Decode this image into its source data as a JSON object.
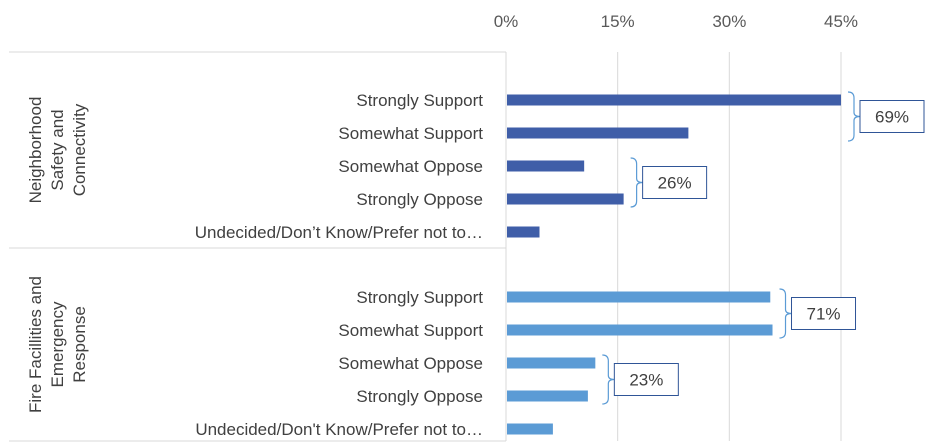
{
  "chart_data": {
    "type": "bar",
    "orientation": "horizontal",
    "title": "",
    "xlabel": "",
    "ylabel": "",
    "xlim": [
      0,
      45
    ],
    "ticks": [
      "0%",
      "15%",
      "30%",
      "45%"
    ],
    "tick_values": [
      0,
      15,
      30,
      45
    ],
    "grid": true,
    "groups": [
      {
        "name": "Neighborhood Safety and Connectivity",
        "name_lines": [
          "Neighborhood",
          "Safety and",
          "Connectivity"
        ],
        "color": "#3F5EA8",
        "categories": [
          "Strongly Support",
          "Somewhat Support",
          "Somewhat Oppose",
          "Strongly Oppose",
          "Undecided/Don’t Know/Prefer not to…"
        ],
        "values": [
          45,
          24.5,
          10.5,
          15.8,
          4.5
        ]
      },
      {
        "name": "Fire Facillities and Emergency Response",
        "name_lines": [
          "Fire Facillities and",
          "Emergency",
          "Response"
        ],
        "color": "#5B9BD5",
        "categories": [
          "Strongly Support",
          "Somewhat Support",
          "Somewhat Oppose",
          "Strongly Oppose",
          "Undecided/Don't Know/Prefer not to…"
        ],
        "values": [
          35.5,
          35.8,
          12,
          11,
          6.3
        ]
      }
    ],
    "annotations": [
      {
        "group": 0,
        "from": 0,
        "to": 1,
        "text": "69%"
      },
      {
        "group": 0,
        "from": 2,
        "to": 3,
        "text": "26%"
      },
      {
        "group": 1,
        "from": 0,
        "to": 1,
        "text": "71%"
      },
      {
        "group": 1,
        "from": 2,
        "to": 3,
        "text": "23%"
      }
    ]
  }
}
